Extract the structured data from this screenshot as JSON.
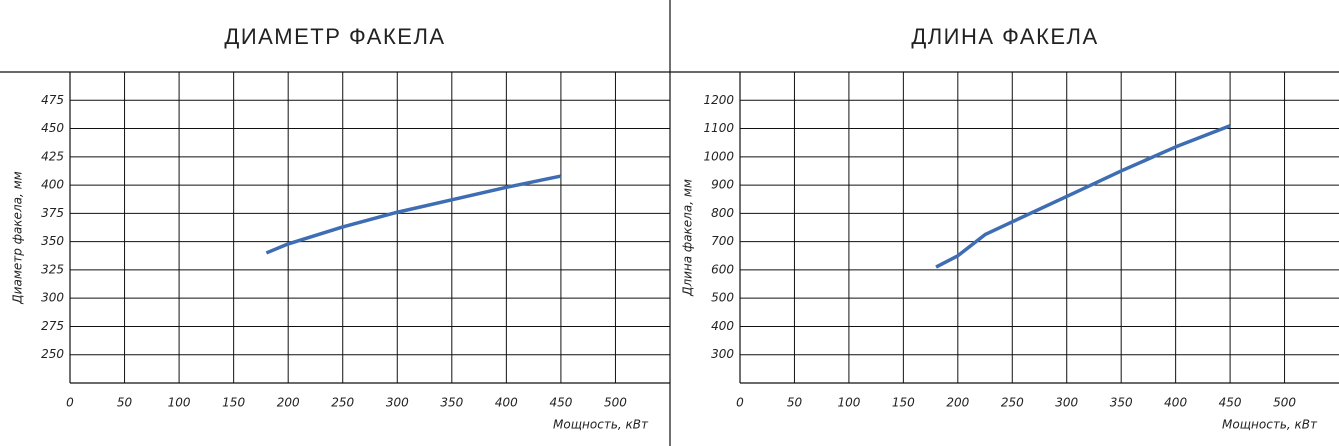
{
  "chart_data": [
    {
      "type": "line",
      "title": "ДИАМЕТР ФАКЕЛА",
      "ylabel": "Диаметр факела, мм",
      "xlabel": "Мощность, кВт",
      "x": [
        180,
        200,
        250,
        300,
        350,
        400,
        450
      ],
      "values": [
        340,
        348,
        363,
        376,
        387,
        398,
        408
      ],
      "color": "#3e6db3",
      "xlim": [
        0,
        550
      ],
      "xticks": [
        0,
        50,
        100,
        150,
        200,
        250,
        300,
        350,
        400,
        450,
        500
      ],
      "ylim": [
        225,
        500
      ],
      "yticks": [
        250,
        275,
        300,
        325,
        350,
        375,
        400,
        425,
        450,
        475
      ],
      "grid": true
    },
    {
      "type": "line",
      "title": "ДЛИНА ФАКЕЛА",
      "ylabel": "Длина факела, мм",
      "xlabel": "Мощность, кВт",
      "x": [
        180,
        200,
        225,
        250,
        300,
        350,
        400,
        450
      ],
      "values": [
        610,
        650,
        725,
        770,
        860,
        950,
        1035,
        1110
      ],
      "color": "#3e6db3",
      "xlim": [
        0,
        550
      ],
      "xticks": [
        0,
        50,
        100,
        150,
        200,
        250,
        300,
        350,
        400,
        450,
        500
      ],
      "ylim": [
        200,
        1300
      ],
      "yticks": [
        300,
        400,
        500,
        600,
        700,
        800,
        900,
        1000,
        1100,
        1200
      ],
      "grid": true
    }
  ]
}
